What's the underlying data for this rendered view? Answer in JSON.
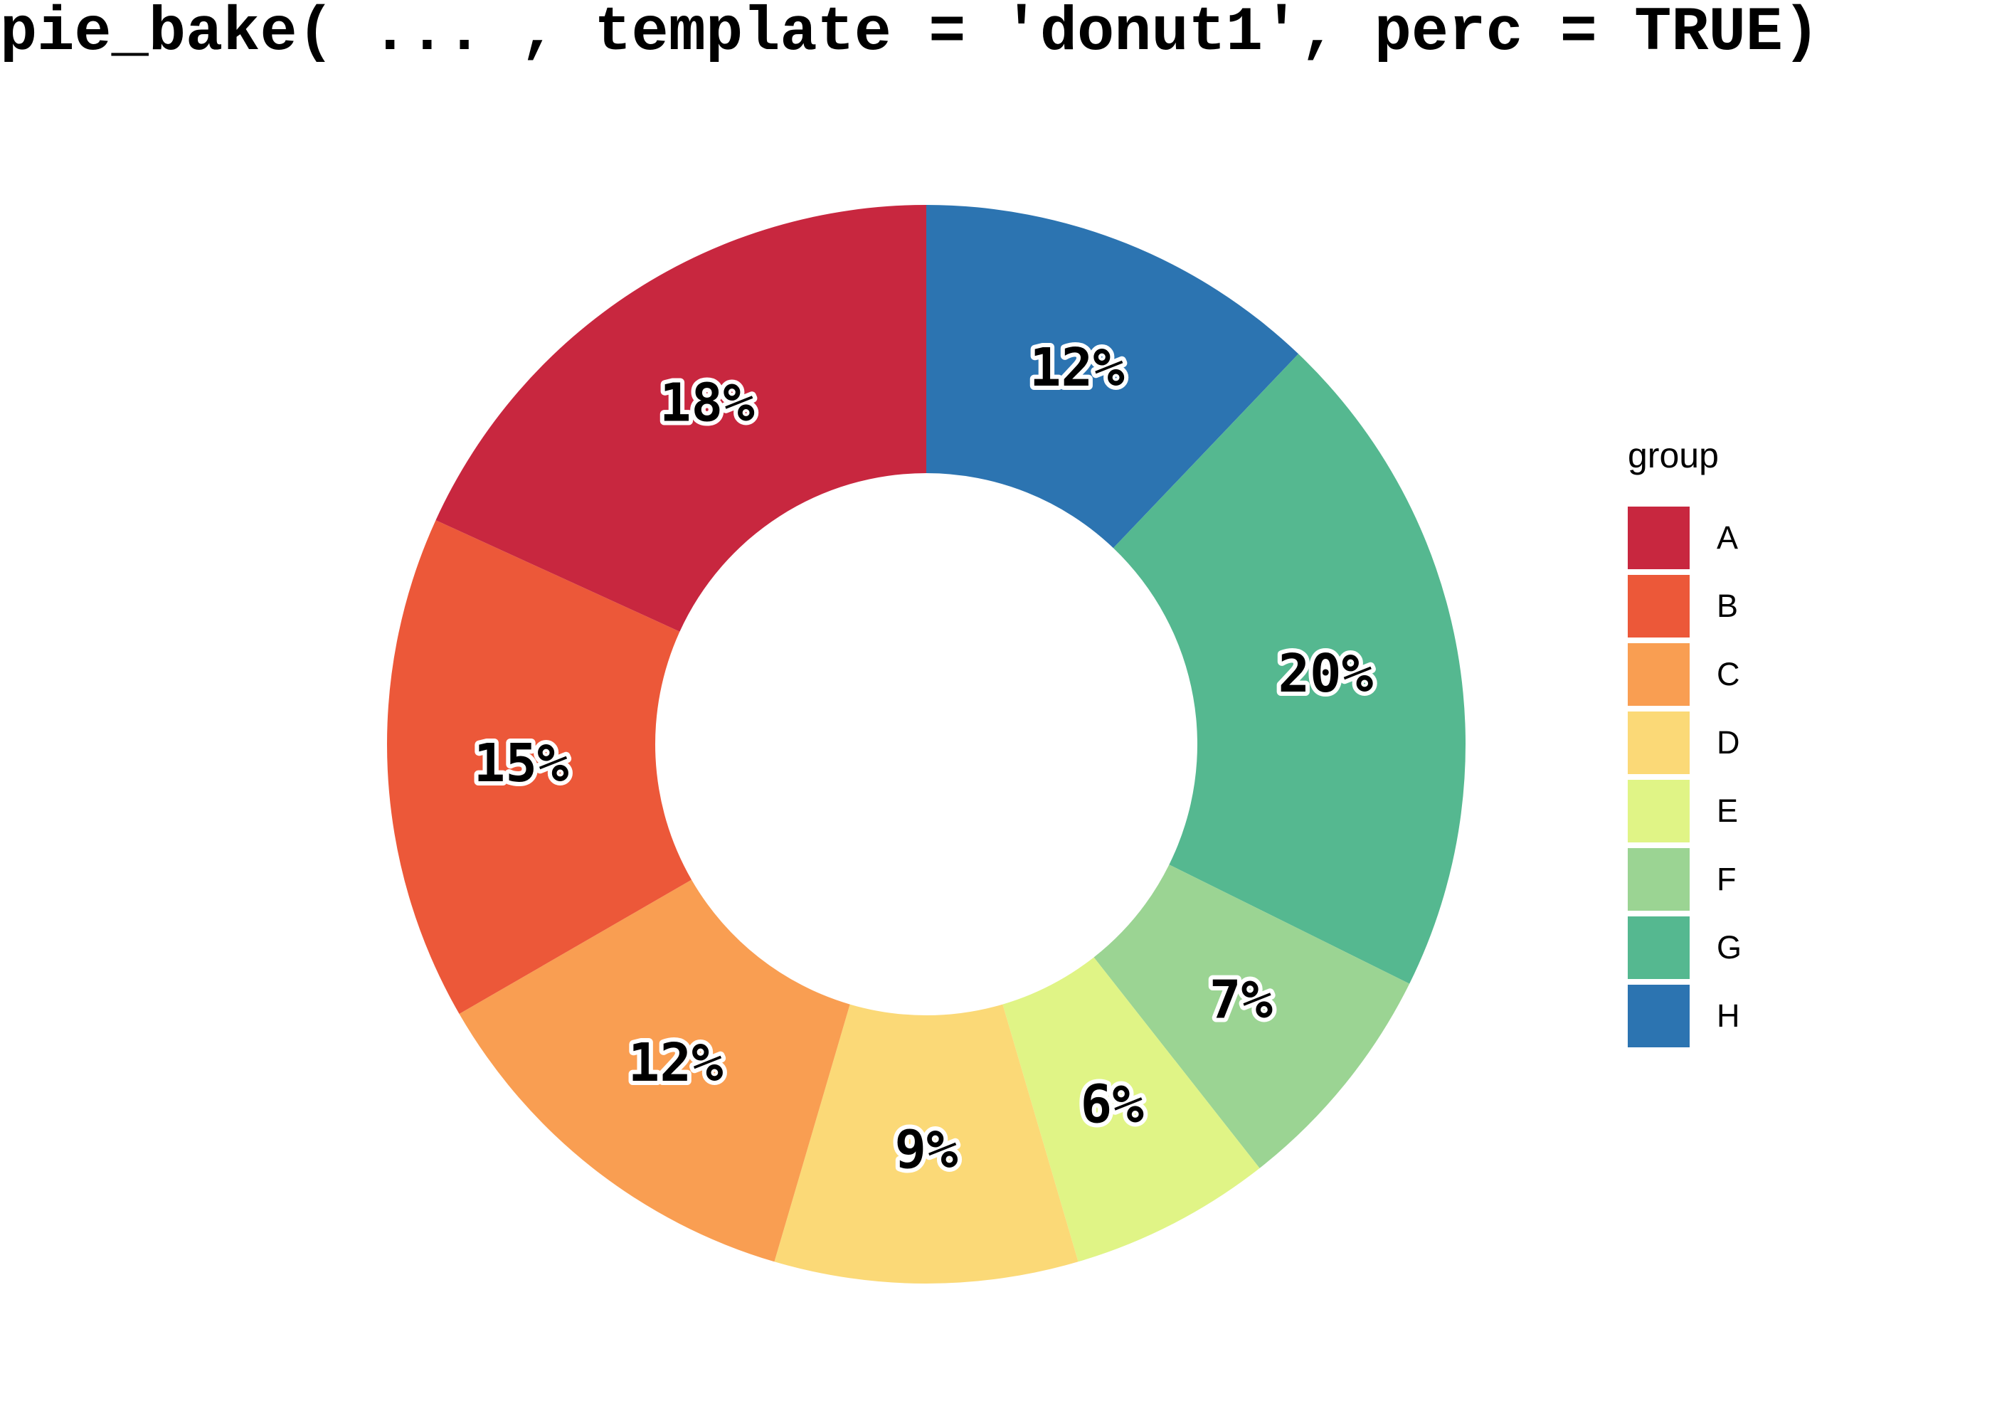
{
  "title": "pie_bake( ... , template = 'donut1', perc = TRUE)",
  "chart_data": {
    "type": "pie",
    "subtype": "donut",
    "title": "pie_bake( ... , template = 'donut1', perc = TRUE)",
    "categories": [
      "A",
      "B",
      "C",
      "D",
      "E",
      "F",
      "G",
      "H"
    ],
    "values": [
      18,
      15,
      12,
      9,
      6,
      7,
      20,
      12
    ],
    "value_unit": "percent",
    "slice_labels": [
      "18%",
      "15%",
      "12%",
      "9%",
      "6%",
      "7%",
      "20%",
      "12%"
    ],
    "colors": [
      "#C8273F",
      "#EC5839",
      "#F99E52",
      "#FBD977",
      "#E0F486",
      "#9BD493",
      "#55B890",
      "#2C74B1"
    ],
    "label_text_color": "#000000",
    "label_outline_color": "#ffffff",
    "inner_radius_ratio": 0.5,
    "start": "top",
    "winding": "counterclockwise (A begins at 12 o'clock going left; clockwise reading from top is H,G,F,E,D,C,B,A)",
    "grid": "off",
    "legend": {
      "title": "group",
      "position": "right",
      "entries": [
        "A",
        "B",
        "C",
        "D",
        "E",
        "F",
        "G",
        "H"
      ]
    }
  }
}
